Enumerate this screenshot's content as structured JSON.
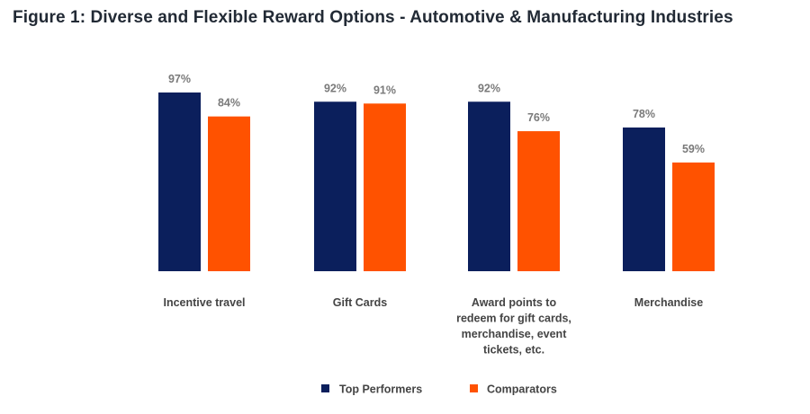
{
  "chart_data": {
    "type": "bar",
    "title": "Figure 1: Diverse and Flexible Reward Options - Automotive & Manufacturing Industries",
    "categories": [
      [
        "Incentive travel"
      ],
      [
        "Gift Cards"
      ],
      [
        "Award points to",
        "redeem for gift cards,",
        "merchandise, event",
        "tickets, etc."
      ],
      [
        "Merchandise"
      ]
    ],
    "series": [
      {
        "name": "Top Performers",
        "color": "#0b1f5c",
        "values": [
          97,
          92,
          92,
          78
        ],
        "labels": [
          "97%",
          "92%",
          "92%",
          "78%"
        ]
      },
      {
        "name": "Comparators",
        "color": "#ff5200",
        "values": [
          84,
          91,
          76,
          59
        ],
        "labels": [
          "84%",
          "91%",
          "76%",
          "59%"
        ]
      }
    ],
    "ylim": [
      0,
      100
    ],
    "grid": false,
    "legend_position": "bottom",
    "xlabel": "",
    "ylabel": ""
  }
}
